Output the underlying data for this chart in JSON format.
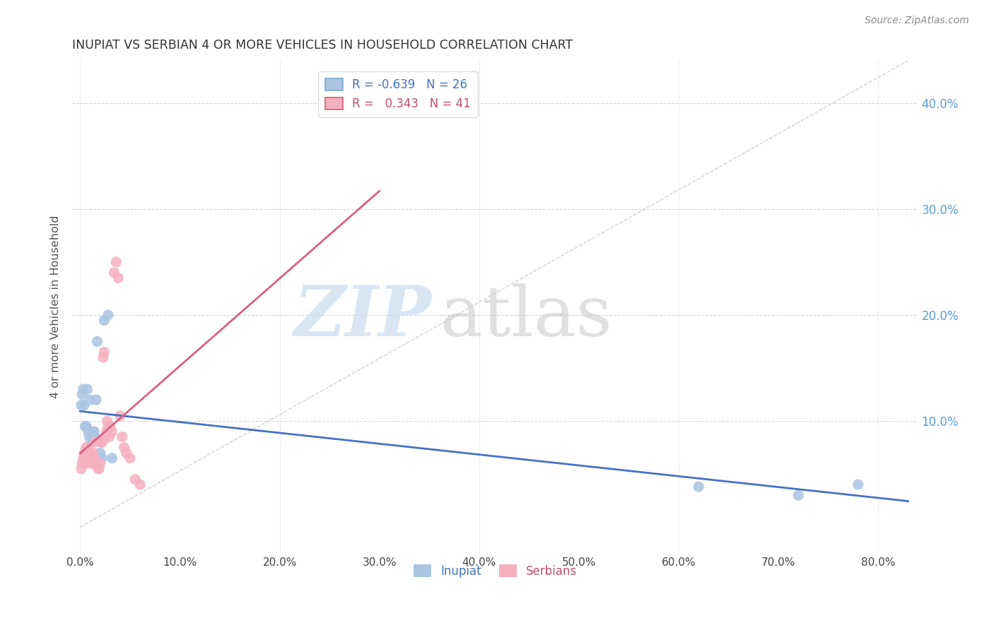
{
  "title": "INUPIAT VS SERBIAN 4 OR MORE VEHICLES IN HOUSEHOLD CORRELATION CHART",
  "source": "Source: ZipAtlas.com",
  "ylabel": "4 or more Vehicles in Household",
  "x_ticks": [
    0.0,
    0.1,
    0.2,
    0.3,
    0.4,
    0.5,
    0.6,
    0.7,
    0.8
  ],
  "y_ticks": [
    0.1,
    0.2,
    0.3,
    0.4
  ],
  "xlim": [
    -0.008,
    0.84
  ],
  "ylim": [
    -0.025,
    0.44
  ],
  "inupiat_R": -0.639,
  "inupiat_N": 26,
  "serbian_R": 0.343,
  "serbian_N": 41,
  "inupiat_color": "#aac4e2",
  "serbian_color": "#f5b0c0",
  "inupiat_line_color": "#4472c4",
  "serbian_line_color": "#d96080",
  "ref_line_color": "#cccccc",
  "inupiat_x": [
    0.001,
    0.002,
    0.003,
    0.004,
    0.005,
    0.006,
    0.007,
    0.008,
    0.009,
    0.01,
    0.011,
    0.012,
    0.013,
    0.014,
    0.015,
    0.016,
    0.017,
    0.018,
    0.02,
    0.022,
    0.024,
    0.028,
    0.032,
    0.62,
    0.72,
    0.78
  ],
  "inupiat_y": [
    0.115,
    0.125,
    0.13,
    0.115,
    0.095,
    0.095,
    0.13,
    0.09,
    0.085,
    0.12,
    0.08,
    0.085,
    0.09,
    0.09,
    0.085,
    0.12,
    0.175,
    0.065,
    0.07,
    0.065,
    0.195,
    0.2,
    0.065,
    0.038,
    0.03,
    0.04
  ],
  "serbian_x": [
    0.001,
    0.002,
    0.003,
    0.004,
    0.005,
    0.006,
    0.007,
    0.008,
    0.009,
    0.01,
    0.011,
    0.012,
    0.013,
    0.014,
    0.015,
    0.016,
    0.017,
    0.018,
    0.019,
    0.02,
    0.021,
    0.022,
    0.023,
    0.024,
    0.025,
    0.026,
    0.027,
    0.028,
    0.029,
    0.03,
    0.032,
    0.034,
    0.036,
    0.038,
    0.04,
    0.042,
    0.044,
    0.046,
    0.05,
    0.055,
    0.06
  ],
  "serbian_y": [
    0.055,
    0.06,
    0.065,
    0.07,
    0.06,
    0.075,
    0.075,
    0.07,
    0.065,
    0.07,
    0.06,
    0.065,
    0.07,
    0.065,
    0.08,
    0.06,
    0.06,
    0.055,
    0.055,
    0.06,
    0.08,
    0.08,
    0.16,
    0.165,
    0.085,
    0.09,
    0.1,
    0.095,
    0.085,
    0.095,
    0.09,
    0.24,
    0.25,
    0.235,
    0.105,
    0.085,
    0.075,
    0.07,
    0.065,
    0.045,
    0.04
  ],
  "inupiat_line_x": [
    0.0,
    0.83
  ],
  "serbian_line_x": [
    0.0,
    0.3
  ],
  "ref_line_x": [
    0.0,
    0.83
  ],
  "ref_line_y": [
    0.0,
    0.44
  ]
}
